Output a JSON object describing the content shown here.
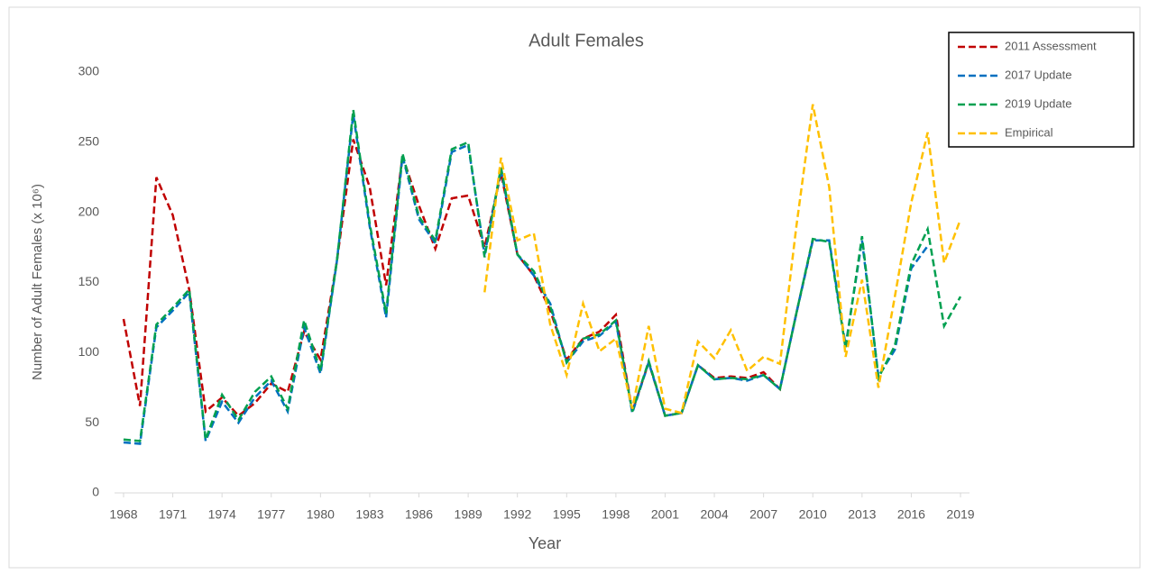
{
  "chart_data": {
    "type": "line",
    "title": "Adult Females",
    "x_label": "Year",
    "y_label": "Number of Adult Females (x 10⁶)",
    "x": [
      1968,
      1969,
      1970,
      1971,
      1972,
      1973,
      1974,
      1975,
      1976,
      1977,
      1978,
      1979,
      1980,
      1981,
      1982,
      1983,
      1984,
      1985,
      1986,
      1987,
      1988,
      1989,
      1990,
      1991,
      1992,
      1993,
      1994,
      1995,
      1996,
      1997,
      1998,
      1999,
      2000,
      2001,
      2002,
      2003,
      2004,
      2005,
      2006,
      2007,
      2008,
      2009,
      2010,
      2011,
      2012,
      2013,
      2014,
      2015,
      2016,
      2017,
      2018,
      2019
    ],
    "series": [
      {
        "name": "2011 Assessment",
        "color": "#c00000",
        "values": [
          124,
          62,
          225,
          198,
          145,
          58,
          68,
          55,
          64,
          78,
          72,
          115,
          95,
          165,
          252,
          218,
          148,
          240,
          205,
          174,
          210,
          212,
          175,
          228,
          170,
          155,
          130,
          95,
          110,
          115,
          127,
          58,
          93,
          55,
          57,
          91,
          82,
          83,
          82,
          86,
          74,
          128,
          180,
          null,
          null,
          null,
          null,
          null,
          null,
          null,
          null,
          null
        ]
      },
      {
        "name": "2017 Update",
        "color": "#0070c0",
        "values": [
          36,
          35,
          118,
          130,
          143,
          37,
          65,
          50,
          68,
          80,
          58,
          118,
          85,
          165,
          270,
          190,
          125,
          240,
          195,
          178,
          243,
          248,
          170,
          230,
          170,
          155,
          135,
          93,
          108,
          112,
          122,
          57,
          93,
          55,
          57,
          91,
          81,
          82,
          80,
          84,
          74,
          128,
          180,
          180,
          105,
          180,
          83,
          102,
          160,
          176,
          null,
          null
        ]
      },
      {
        "name": "2019 Update",
        "color": "#00a050",
        "values": [
          38,
          37,
          120,
          132,
          145,
          38,
          70,
          52,
          72,
          83,
          60,
          123,
          87,
          165,
          273,
          192,
          128,
          242,
          197,
          180,
          245,
          250,
          168,
          232,
          170,
          158,
          133,
          93,
          110,
          113,
          123,
          58,
          94,
          55,
          57,
          91,
          81,
          82,
          81,
          84,
          74,
          128,
          181,
          179,
          103,
          183,
          82,
          105,
          163,
          188,
          119,
          140
        ]
      },
      {
        "name": "Empirical",
        "color": "#ffc000",
        "values": [
          null,
          null,
          null,
          null,
          null,
          null,
          null,
          null,
          null,
          null,
          null,
          null,
          null,
          null,
          null,
          null,
          null,
          null,
          null,
          null,
          null,
          null,
          143,
          239,
          180,
          185,
          120,
          84,
          135,
          101,
          110,
          60,
          119,
          60,
          57,
          108,
          96,
          116,
          87,
          97,
          92,
          190,
          277,
          218,
          97,
          152,
          75,
          140,
          207,
          257,
          164,
          195
        ]
      }
    ],
    "xlim": [
      1968,
      2019
    ],
    "xticks": [
      1968,
      1971,
      1974,
      1977,
      1980,
      1983,
      1986,
      1989,
      1992,
      1995,
      1998,
      2001,
      2004,
      2007,
      2010,
      2013,
      2016,
      2019
    ],
    "ylim": [
      0,
      300
    ],
    "yticks": [
      0,
      50,
      100,
      150,
      200,
      250,
      300
    ],
    "grid": false,
    "legend": "upper right"
  }
}
